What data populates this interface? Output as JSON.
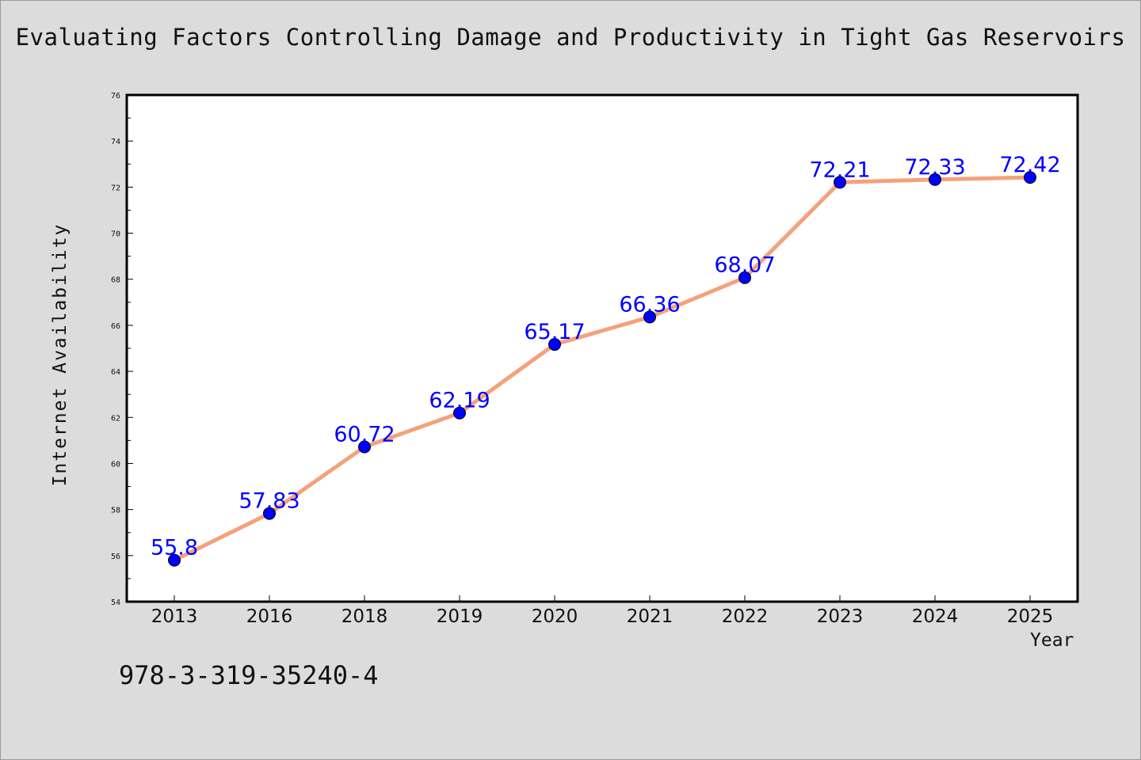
{
  "title": "Evaluating Factors Controlling Damage and Productivity in Tight Gas Reservoirs",
  "footer_text": "978-3-319-35240-4",
  "colors": {
    "background": "#dcdcdc",
    "plot_area": "#ffffff",
    "line": "#f4a27c",
    "marker": "#0000ff",
    "data_label": "#0000ff"
  },
  "chart_data": {
    "type": "line",
    "title": "Evaluating Factors Controlling Damage and Productivity in Tight Gas Reservoirs",
    "xlabel": "Year",
    "ylabel": "Internet Availability",
    "categories": [
      "2013",
      "2016",
      "2018",
      "2019",
      "2020",
      "2021",
      "2022",
      "2023",
      "2024",
      "2025"
    ],
    "series": [
      {
        "values": [
          55.8,
          57.83,
          60.72,
          62.19,
          65.17,
          66.36,
          68.07,
          72.21,
          72.33,
          72.42
        ],
        "labels": [
          "55.8",
          "57.83",
          "60.72",
          "62.19",
          "65.17",
          "66.36",
          "68.07",
          "72.21",
          "72.33",
          "72.42"
        ]
      }
    ],
    "ylim": [
      54,
      76
    ],
    "yticks": [
      "54",
      "56",
      "58",
      "60",
      "62",
      "64",
      "66",
      "68",
      "70",
      "72",
      "74",
      "76"
    ],
    "grid": false,
    "legend": "none"
  }
}
